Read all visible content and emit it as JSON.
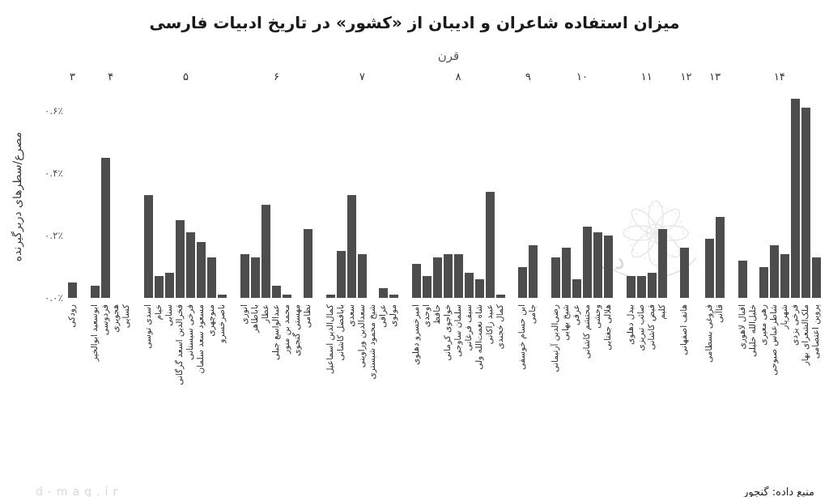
{
  "chart_data": {
    "type": "bar",
    "title": "میزان استفاده شاعران و ادیبان از «کشور» در تاریخ ادبیات فارسی",
    "xlabel": "قرن",
    "ylabel": "مصرع/سطرهای دربرگیرنده",
    "unit": "percent_of_lines",
    "ylim": [
      0,
      0.65
    ],
    "grid": false,
    "bar_color": "#4d4d4d",
    "yticks": [
      {
        "value": 0.0,
        "label": "۰.۰٪"
      },
      {
        "value": 0.2,
        "label": "۰.۲٪"
      },
      {
        "value": 0.4,
        "label": "۰.۴٪"
      },
      {
        "value": 0.6,
        "label": "۰.۶٪"
      }
    ],
    "groups": [
      {
        "century": "۳",
        "bars": [
          {
            "name": "رودکی",
            "value": 0.05
          }
        ]
      },
      {
        "century": "۴",
        "bars": [
          {
            "name": "ابوسعید ابوالخیر",
            "value": 0.04
          },
          {
            "name": "فردوسی",
            "value": 0.45
          },
          {
            "name": "هجویری",
            "value": 0.0
          },
          {
            "name": "کسایی",
            "value": 0.0
          }
        ]
      },
      {
        "century": "۵",
        "bars": [
          {
            "name": "اسدی توسی",
            "value": 0.33
          },
          {
            "name": "خیام",
            "value": 0.07
          },
          {
            "name": "سنایی",
            "value": 0.08
          },
          {
            "name": "فخرالدین اسعد گرگانی",
            "value": 0.25
          },
          {
            "name": "فرخی سیستانی",
            "value": 0.21
          },
          {
            "name": "مسعود سعد سلمان",
            "value": 0.18
          },
          {
            "name": "منوچهری",
            "value": 0.13
          },
          {
            "name": "ناصرخسرو",
            "value": 0.01
          }
        ]
      },
      {
        "century": "۶",
        "bars": [
          {
            "name": "انوری",
            "value": 0.14
          },
          {
            "name": "باباطاهر",
            "value": 0.13
          },
          {
            "name": "عطار",
            "value": 0.3
          },
          {
            "name": "عبدالواسع جبلی",
            "value": 0.04
          },
          {
            "name": "محمد بن منور",
            "value": 0.01
          },
          {
            "name": "مهستی گنجوی",
            "value": 0.0
          },
          {
            "name": "نظامی",
            "value": 0.22
          }
        ]
      },
      {
        "century": "۷",
        "bars": [
          {
            "name": "کمال‌الدین اسماعیل",
            "value": 0.01
          },
          {
            "name": "بابافضل کاشانی",
            "value": 0.15
          },
          {
            "name": "سعدی",
            "value": 0.33
          },
          {
            "name": "سعدالدین وراوینی",
            "value": 0.14
          },
          {
            "name": "شیخ محمود شبستری",
            "value": 0.0
          },
          {
            "name": "عراقی",
            "value": 0.03
          },
          {
            "name": "مولوی",
            "value": 0.01
          }
        ]
      },
      {
        "century": "۸",
        "bars": [
          {
            "name": "امیرخسرو دهلوی",
            "value": 0.11
          },
          {
            "name": "اوحدی",
            "value": 0.07
          },
          {
            "name": "حافظ",
            "value": 0.13
          },
          {
            "name": "خواجوی کرمانی",
            "value": 0.14
          },
          {
            "name": "سلمان ساوجی",
            "value": 0.14
          },
          {
            "name": "سیف فرغانی",
            "value": 0.08
          },
          {
            "name": "شاه نعمت‌الله ولی",
            "value": 0.06
          },
          {
            "name": "عبید زاکانی",
            "value": 0.34
          },
          {
            "name": "کمال خجندی",
            "value": 0.01
          }
        ]
      },
      {
        "century": "۹",
        "bars": [
          {
            "name": "ابن حسام خوسفی",
            "value": 0.1
          },
          {
            "name": "جامی",
            "value": 0.17
          }
        ]
      },
      {
        "century": "۱۰",
        "bars": [
          {
            "name": "رضی‌الدین آرتیمانی",
            "value": 0.13
          },
          {
            "name": "شیخ بهایی",
            "value": 0.16
          },
          {
            "name": "عرفی",
            "value": 0.06
          },
          {
            "name": "محتشم کاشانی",
            "value": 0.23
          },
          {
            "name": "وحشی",
            "value": 0.21
          },
          {
            "name": "هلالی جغتایی",
            "value": 0.2
          }
        ]
      },
      {
        "century": "۱۱",
        "bars": [
          {
            "name": "بیدل دهلوی",
            "value": 0.07
          },
          {
            "name": "صائب تبریزی",
            "value": 0.07
          },
          {
            "name": "فیض کاشانی",
            "value": 0.08
          },
          {
            "name": "کلیم",
            "value": 0.22
          }
        ]
      },
      {
        "century": "۱۲",
        "bars": [
          {
            "name": "هاتف اصفهانی",
            "value": 0.16
          }
        ]
      },
      {
        "century": "۱۳",
        "bars": [
          {
            "name": "فروغی بسطامی",
            "value": 0.19
          },
          {
            "name": "قاآنی",
            "value": 0.26
          }
        ]
      },
      {
        "century": "۱۴",
        "bars": [
          {
            "name": "اقبال لاهوری",
            "value": 0.12
          },
          {
            "name": "خلیل‌الله خلیلی",
            "value": 0.0
          },
          {
            "name": "رهی معیری",
            "value": 0.1
          },
          {
            "name": "شاطرعباس صبوحی",
            "value": 0.17
          },
          {
            "name": "شهریار",
            "value": 0.14
          },
          {
            "name": "فرخی یزدی",
            "value": 0.64
          },
          {
            "name": "ملک‌الشعرای بهار",
            "value": 0.61
          },
          {
            "name": "پروین اعتصامی",
            "value": 0.13
          }
        ]
      }
    ]
  },
  "watermark": {
    "logo_text": "دقیقه"
  },
  "footer": {
    "source": "منبع داده: گنجور",
    "site": "d-mag.ir"
  }
}
